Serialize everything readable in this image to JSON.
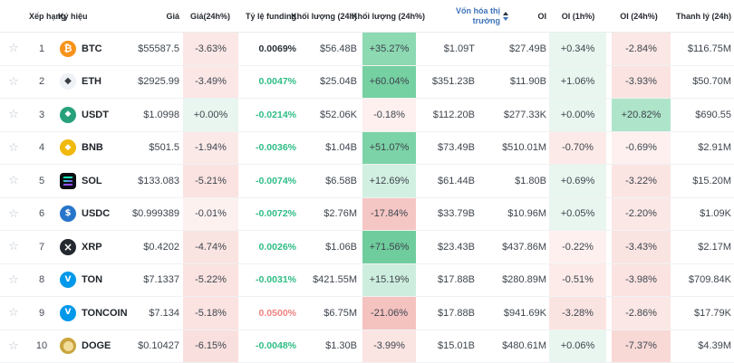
{
  "table": {
    "star_glyph": "☆",
    "headers": {
      "favorite": "",
      "rank": "Xếp hạng",
      "symbol": "Ký hiệu",
      "price": "Giá",
      "price_change_24h": "Giá(24h%)",
      "funding_rate": "Tỷ lệ funding",
      "volume_24h": "Khối lượng (24h)",
      "volume_change_24h": "Khối lượng (24h%)",
      "market_cap": "Vốn hóa thị trường",
      "oi": "OI",
      "oi_1h": "OI (1h%)",
      "oi_24h": "OI (24h%)",
      "liquidation_24h": "Thanh lý (24h)"
    },
    "colors": {
      "positive_text": "#2ebd85",
      "negative_text": "#f0827f",
      "neutral_text": "#2b3139",
      "sorted_header": "#3e73b9"
    },
    "rows": [
      {
        "rank": "1",
        "symbol": "BTC",
        "icon": {
          "name": "btc-icon",
          "bg": "#f7931a",
          "fg": "#ffffff",
          "glyph": "₿",
          "fs": "11px"
        },
        "price": "$55587.5",
        "chg": {
          "v": "-3.63%",
          "bg": "#fbe7e6"
        },
        "funding": {
          "v": "0.0069%",
          "color": "#2b3139"
        },
        "vol": "$56.48B",
        "volchg": {
          "v": "+35.27%",
          "bg": "#8cd9b2"
        },
        "mcap": "$1.09T",
        "oi": "$27.49B",
        "oi1h": {
          "v": "+0.34%",
          "bg": "#e8f6ef"
        },
        "oi24h": {
          "v": "-2.84%",
          "bg": "#fbe7e5"
        },
        "liq": "$116.75M"
      },
      {
        "rank": "2",
        "symbol": "ETH",
        "icon": {
          "name": "eth-icon",
          "bg": "#eef1f5",
          "fg": "#3a3d45",
          "glyph": "◆",
          "fs": "10px"
        },
        "price": "$2925.99",
        "chg": {
          "v": "-3.49%",
          "bg": "#fbe7e6"
        },
        "funding": {
          "v": "0.0047%",
          "color": "#2ebd85"
        },
        "vol": "$25.04B",
        "volchg": {
          "v": "+60.04%",
          "bg": "#75d0a2"
        },
        "mcap": "$351.23B",
        "oi": "$11.90B",
        "oi1h": {
          "v": "+1.06%",
          "bg": "#e8f6ef"
        },
        "oi24h": {
          "v": "-3.93%",
          "bg": "#fae3e1"
        },
        "liq": "$50.70M"
      },
      {
        "rank": "3",
        "symbol": "USDT",
        "icon": {
          "name": "usdt-icon",
          "bg": "#26a17b",
          "fg": "#ffffff",
          "glyph": "◆",
          "fs": "9px"
        },
        "price": "$1.0998",
        "chg": {
          "v": "+0.00%",
          "bg": "#e8f6ef"
        },
        "funding": {
          "v": "-0.0214%",
          "color": "#2ebd85"
        },
        "vol": "$52.06K",
        "volchg": {
          "v": "-0.18%",
          "bg": "#fdf0ef"
        },
        "mcap": "$112.20B",
        "oi": "$277.33K",
        "oi1h": {
          "v": "+0.00%",
          "bg": "#e8f6ef"
        },
        "oi24h": {
          "v": "+20.82%",
          "bg": "#aee4c9"
        },
        "liq": "$690.55"
      },
      {
        "rank": "4",
        "symbol": "BNB",
        "icon": {
          "name": "bnb-icon",
          "bg": "#f0b90b",
          "fg": "#ffffff",
          "glyph": "◆",
          "fs": "9px"
        },
        "price": "$501.5",
        "chg": {
          "v": "-1.94%",
          "bg": "#fbe9e8"
        },
        "funding": {
          "v": "-0.0036%",
          "color": "#2ebd85"
        },
        "vol": "$1.04B",
        "volchg": {
          "v": "+51.07%",
          "bg": "#7cd3a7"
        },
        "mcap": "$73.49B",
        "oi": "$510.01M",
        "oi1h": {
          "v": "-0.70%",
          "bg": "#fceae8"
        },
        "oi24h": {
          "v": "-0.69%",
          "bg": "#fdf0ef"
        },
        "liq": "$2.91M"
      },
      {
        "rank": "5",
        "symbol": "SOL",
        "icon": {
          "name": "sol-icon",
          "kind": "sol",
          "bg": "#0d0e12"
        },
        "price": "$133.083",
        "chg": {
          "v": "-5.21%",
          "bg": "#fae3e1"
        },
        "funding": {
          "v": "-0.0074%",
          "color": "#2ebd85"
        },
        "vol": "$6.58B",
        "volchg": {
          "v": "+12.69%",
          "bg": "#d2f0e1"
        },
        "mcap": "$61.44B",
        "oi": "$1.80B",
        "oi1h": {
          "v": "+0.69%",
          "bg": "#e8f6ef"
        },
        "oi24h": {
          "v": "-3.22%",
          "bg": "#fae5e3"
        },
        "liq": "$15.20M"
      },
      {
        "rank": "6",
        "symbol": "USDC",
        "icon": {
          "name": "usdc-icon",
          "bg": "#2775ca",
          "fg": "#ffffff",
          "glyph": "$",
          "fs": "10px"
        },
        "price": "$0.999389",
        "chg": {
          "v": "-0.01%",
          "bg": "#fdf1f0"
        },
        "funding": {
          "v": "-0.0072%",
          "color": "#2ebd85"
        },
        "vol": "$2.76M",
        "volchg": {
          "v": "-17.84%",
          "bg": "#f5c7c4"
        },
        "mcap": "$33.79B",
        "oi": "$10.96M",
        "oi1h": {
          "v": "+0.05%",
          "bg": "#e8f6ef"
        },
        "oi24h": {
          "v": "-2.20%",
          "bg": "#fbe8e6"
        },
        "liq": "$1.09K"
      },
      {
        "rank": "7",
        "symbol": "XRP",
        "icon": {
          "name": "xrp-icon",
          "bg": "#23292f",
          "fg": "#ffffff",
          "glyph": "×",
          "fs": "12px"
        },
        "price": "$0.4202",
        "chg": {
          "v": "-4.74%",
          "bg": "#fae4e2"
        },
        "funding": {
          "v": "0.0026%",
          "color": "#2ebd85"
        },
        "vol": "$1.06B",
        "volchg": {
          "v": "+71.56%",
          "bg": "#6fcd9d"
        },
        "mcap": "$23.43B",
        "oi": "$437.86M",
        "oi1h": {
          "v": "-0.22%",
          "bg": "#fdf0ef"
        },
        "oi24h": {
          "v": "-3.43%",
          "bg": "#fae4e2"
        },
        "liq": "$2.17M"
      },
      {
        "rank": "8",
        "symbol": "TON",
        "icon": {
          "name": "ton-icon",
          "bg": "#0098ea",
          "fg": "#ffffff",
          "glyph": "V",
          "fs": "9px"
        },
        "price": "$7.1337",
        "chg": {
          "v": "-5.22%",
          "bg": "#fae3e1"
        },
        "funding": {
          "v": "-0.0031%",
          "color": "#2ebd85"
        },
        "vol": "$421.55M",
        "volchg": {
          "v": "+15.19%",
          "bg": "#cdeede"
        },
        "mcap": "$17.88B",
        "oi": "$280.89M",
        "oi1h": {
          "v": "-0.51%",
          "bg": "#fcebe9"
        },
        "oi24h": {
          "v": "-3.98%",
          "bg": "#fae3e1"
        },
        "liq": "$709.84K"
      },
      {
        "rank": "9",
        "symbol": "TONCOIN",
        "icon": {
          "name": "toncoin-icon",
          "bg": "#0098ea",
          "fg": "#ffffff",
          "glyph": "V",
          "fs": "9px"
        },
        "price": "$7.134",
        "chg": {
          "v": "-5.18%",
          "bg": "#fae3e1"
        },
        "funding": {
          "v": "0.0500%",
          "color": "#f0827f"
        },
        "vol": "$6.75M",
        "volchg": {
          "v": "-21.06%",
          "bg": "#f4c2bf"
        },
        "mcap": "$17.88B",
        "oi": "$941.69K",
        "oi1h": {
          "v": "-3.28%",
          "bg": "#fae4e2"
        },
        "oi24h": {
          "v": "-2.86%",
          "bg": "#fbe7e5"
        },
        "liq": "$17.79K"
      },
      {
        "rank": "10",
        "symbol": "DOGE",
        "icon": {
          "name": "doge-icon",
          "kind": "doge",
          "bg": "#c9a43e"
        },
        "price": "$0.10427",
        "chg": {
          "v": "-6.15%",
          "bg": "#f9e0de"
        },
        "funding": {
          "v": "-0.0048%",
          "color": "#2ebd85"
        },
        "vol": "$1.30B",
        "volchg": {
          "v": "-3.99%",
          "bg": "#fae5e3"
        },
        "mcap": "$15.01B",
        "oi": "$480.61M",
        "oi1h": {
          "v": "+0.06%",
          "bg": "#e8f6ef"
        },
        "oi24h": {
          "v": "-7.37%",
          "bg": "#f8d9d6"
        },
        "liq": "$4.39M"
      }
    ]
  }
}
